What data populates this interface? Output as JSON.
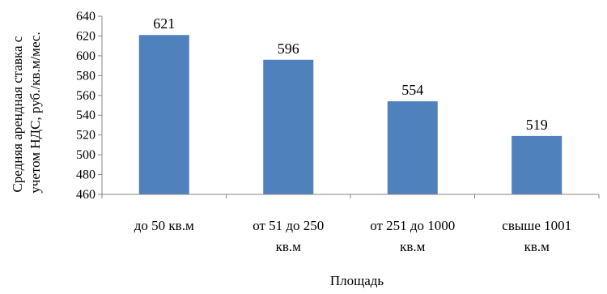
{
  "chart_data": {
    "type": "bar",
    "categories": [
      [
        "до 50 кв.м"
      ],
      [
        "от 51 до 250",
        "кв.м"
      ],
      [
        "от 251 до 1000",
        "кв.м"
      ],
      [
        "свыше 1001",
        "кв.м"
      ]
    ],
    "values": [
      621,
      596,
      554,
      519
    ],
    "data_labels": [
      "621",
      "596",
      "554",
      "519"
    ],
    "title": "",
    "xlabel": "Площадь",
    "ylabel": [
      "Средняя арендная ставка с",
      "учетом НДС, руб./кв.м/мес."
    ],
    "ylim": [
      460,
      640
    ],
    "yticks": [
      460,
      480,
      500,
      520,
      540,
      560,
      580,
      600,
      620,
      640
    ],
    "grid": false,
    "legend": "none",
    "bar_color": "#4f81bd",
    "axis_color": "#868686"
  }
}
